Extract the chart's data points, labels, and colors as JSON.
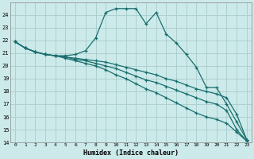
{
  "xlabel": "Humidex (Indice chaleur)",
  "background_color": "#cceaea",
  "grid_color": "#aacccc",
  "line_color": "#1a6e6e",
  "xlim": [
    -0.5,
    23.5
  ],
  "ylim": [
    14,
    25
  ],
  "xticks": [
    0,
    1,
    2,
    3,
    4,
    5,
    6,
    7,
    8,
    9,
    10,
    11,
    12,
    13,
    14,
    15,
    16,
    17,
    18,
    19,
    20,
    21,
    22,
    23
  ],
  "yticks": [
    14,
    15,
    16,
    17,
    18,
    19,
    20,
    21,
    22,
    23,
    24
  ],
  "line1_x": [
    0,
    1,
    2,
    3,
    4,
    5,
    6,
    7,
    8,
    9,
    10,
    11,
    12,
    13,
    14,
    15,
    16,
    17,
    18,
    19,
    20,
    21,
    22,
    23
  ],
  "line1_y": [
    21.9,
    21.4,
    21.1,
    20.9,
    20.8,
    20.8,
    20.9,
    21.2,
    22.2,
    24.2,
    24.5,
    24.5,
    24.5,
    23.3,
    24.2,
    22.5,
    21.8,
    20.9,
    19.9,
    18.3,
    18.3,
    17.0,
    15.6,
    14.2
  ],
  "line2_x": [
    0,
    1,
    2,
    3,
    4,
    5,
    6,
    7,
    8,
    9,
    10,
    11,
    12,
    13,
    14,
    15,
    16,
    17,
    18,
    19,
    20,
    21,
    22,
    23
  ],
  "line2_y": [
    21.9,
    21.4,
    21.1,
    20.9,
    20.8,
    20.7,
    20.6,
    20.5,
    20.4,
    20.3,
    20.1,
    19.9,
    19.7,
    19.5,
    19.3,
    19.0,
    18.8,
    18.5,
    18.2,
    18.0,
    17.8,
    17.5,
    16.2,
    14.2
  ],
  "line3_x": [
    0,
    1,
    2,
    3,
    4,
    5,
    6,
    7,
    8,
    9,
    10,
    11,
    12,
    13,
    14,
    15,
    16,
    17,
    18,
    19,
    20,
    21,
    22,
    23
  ],
  "line3_y": [
    21.9,
    21.4,
    21.1,
    20.9,
    20.8,
    20.7,
    20.5,
    20.4,
    20.2,
    20.0,
    19.8,
    19.5,
    19.2,
    18.9,
    18.7,
    18.4,
    18.1,
    17.8,
    17.5,
    17.2,
    17.0,
    16.5,
    15.0,
    14.1
  ],
  "line4_x": [
    0,
    1,
    2,
    3,
    4,
    5,
    6,
    7,
    8,
    9,
    10,
    11,
    12,
    13,
    14,
    15,
    16,
    17,
    18,
    19,
    20,
    21,
    22,
    23
  ],
  "line4_y": [
    21.9,
    21.4,
    21.1,
    20.9,
    20.8,
    20.6,
    20.4,
    20.2,
    20.0,
    19.7,
    19.3,
    19.0,
    18.6,
    18.2,
    17.9,
    17.5,
    17.1,
    16.7,
    16.3,
    16.0,
    15.8,
    15.5,
    14.8,
    14.1
  ]
}
